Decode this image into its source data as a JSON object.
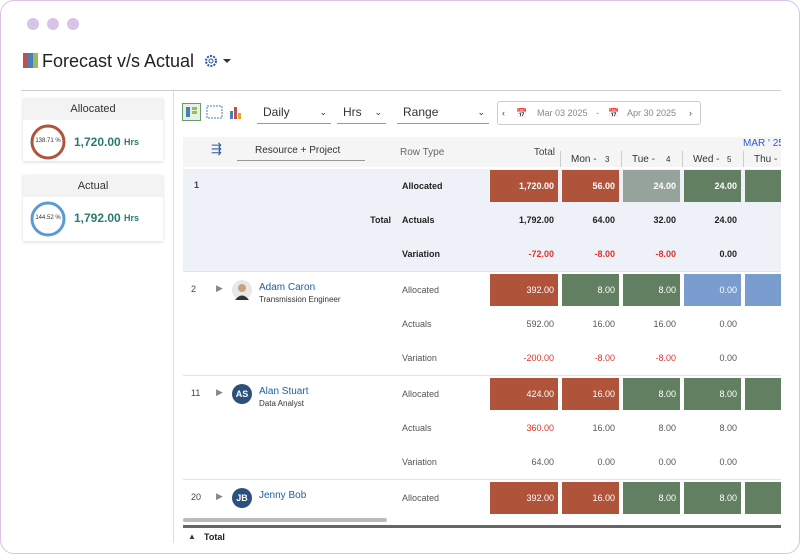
{
  "header": {
    "title": "Forecast v/s Actual"
  },
  "summary": [
    {
      "label": "Allocated",
      "percent": "138.71 %",
      "hours": "1,720.00",
      "unit": "Hrs",
      "ring_color": "#b0533b"
    },
    {
      "label": "Actual",
      "percent": "144.52 %",
      "hours": "1,792.00",
      "unit": "Hrs",
      "ring_color": "#5b9bd5"
    }
  ],
  "toolbar": {
    "period": "Daily",
    "unit": "Hrs",
    "range": "Range",
    "start_date": "Mar 03 2025",
    "separator": "-",
    "end_date": "Apr 30 2025"
  },
  "grid": {
    "columns": {
      "resource": "Resource + Project",
      "row_type": "Row Type",
      "total": "Total"
    },
    "month": "MAR ' 25",
    "days": [
      {
        "name": "Mon -",
        "day": "3"
      },
      {
        "name": "Tue -",
        "day": "4"
      },
      {
        "name": "Wed -",
        "day": "5"
      },
      {
        "name": "Thu -"
      }
    ],
    "groups": [
      {
        "index": "1",
        "name": "Total",
        "rows": [
          {
            "row_type": "Allocated",
            "cells": [
              {
                "text": "1,720.00",
                "fill": "#b0533b"
              },
              {
                "text": "56.00",
                "fill": "#b0533b"
              },
              {
                "text": "24.00",
                "fill": "#95a39a"
              },
              {
                "text": "24.00",
                "fill": "#627f62"
              },
              {
                "fill": "#627f62"
              }
            ]
          },
          {
            "row_type": "Actuals",
            "cells": [
              {
                "text": "1,792.00"
              },
              {
                "text": "64.00"
              },
              {
                "text": "32.00"
              },
              {
                "text": "24.00"
              }
            ]
          },
          {
            "row_type": "Variation",
            "cells": [
              {
                "text": "-72.00",
                "text_color": "#e0302a"
              },
              {
                "text": "-8.00",
                "text_color": "#e0302a"
              },
              {
                "text": "-8.00",
                "text_color": "#e0302a"
              },
              {
                "text": "0.00"
              }
            ]
          }
        ]
      },
      {
        "index": "2",
        "name": "Adam Caron",
        "subtitle": "Transmission Engineer",
        "rows": [
          {
            "row_type": "Allocated",
            "cells": [
              {
                "text": "392.00",
                "fill": "#b0533b"
              },
              {
                "text": "8.00",
                "fill": "#627f62"
              },
              {
                "text": "8.00",
                "fill": "#627f62"
              },
              {
                "text": "0.00",
                "fill": "#7b9ccf"
              },
              {
                "fill": "#7b9ccf"
              }
            ]
          },
          {
            "row_type": "Actuals",
            "cells": [
              {
                "text": "592.00"
              },
              {
                "text": "16.00"
              },
              {
                "text": "16.00"
              },
              {
                "text": "0.00"
              }
            ]
          },
          {
            "row_type": "Variation",
            "cells": [
              {
                "text": "-200.00",
                "text_color": "#e0302a"
              },
              {
                "text": "-8.00",
                "text_color": "#e0302a"
              },
              {
                "text": "-8.00",
                "text_color": "#e0302a"
              },
              {
                "text": "0.00"
              }
            ]
          }
        ]
      },
      {
        "index": "11",
        "name": "Alan Stuart",
        "initials": "AS",
        "subtitle": "Data Analyst",
        "rows": [
          {
            "row_type": "Allocated",
            "cells": [
              {
                "text": "424.00",
                "fill": "#b0533b"
              },
              {
                "text": "16.00",
                "fill": "#b0533b"
              },
              {
                "text": "8.00",
                "fill": "#627f62"
              },
              {
                "text": "8.00",
                "fill": "#627f62"
              },
              {
                "fill": "#627f62"
              }
            ]
          },
          {
            "row_type": "Actuals",
            "cells": [
              {
                "text": "360.00",
                "text_color": "#e0302a"
              },
              {
                "text": "16.00"
              },
              {
                "text": "8.00"
              },
              {
                "text": "8.00"
              }
            ]
          },
          {
            "row_type": "Variation",
            "cells": [
              {
                "text": "64.00"
              },
              {
                "text": "0.00"
              },
              {
                "text": "0.00"
              },
              {
                "text": "0.00"
              }
            ]
          }
        ]
      },
      {
        "index": "20",
        "name": "Jenny Bob",
        "initials": "JB",
        "rows": [
          {
            "row_type": "Allocated",
            "cells": [
              {
                "text": "392.00",
                "fill": "#b0533b"
              },
              {
                "text": "16.00",
                "fill": "#b0533b"
              },
              {
                "text": "8.00",
                "fill": "#627f62"
              },
              {
                "text": "8.00",
                "fill": "#627f62"
              },
              {
                "fill": "#627f62"
              }
            ]
          }
        ]
      }
    ],
    "footer": "Total"
  }
}
